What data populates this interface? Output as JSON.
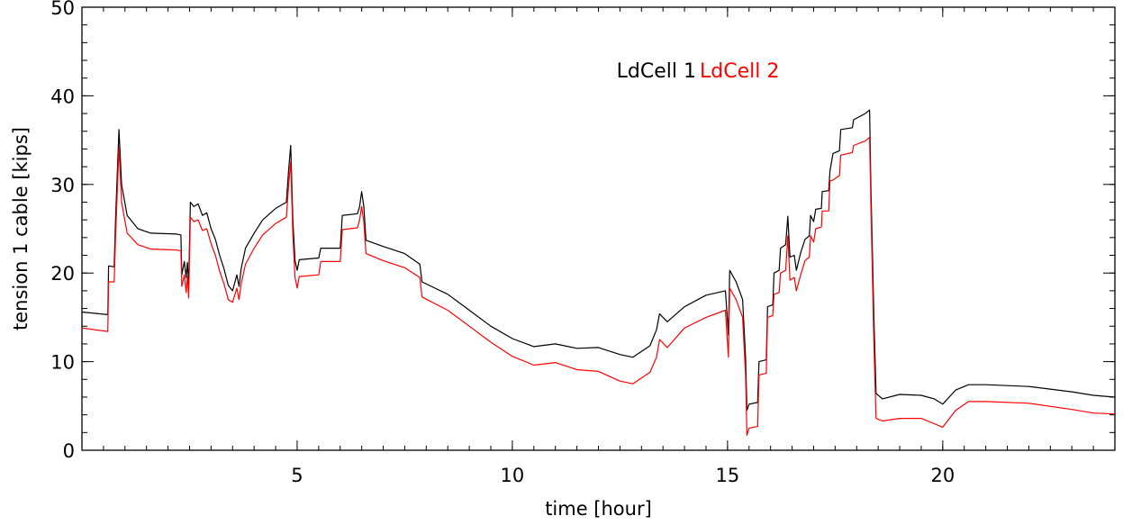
{
  "chart_data": {
    "type": "line",
    "title": "",
    "xlabel": "time [hour]",
    "ylabel": "tension 1 cable [kips]",
    "xlim": [
      0,
      24
    ],
    "ylim": [
      0,
      50
    ],
    "x_ticks": [
      5,
      10,
      15,
      20
    ],
    "y_ticks": [
      0,
      10,
      20,
      30,
      40,
      50
    ],
    "grid": false,
    "legend_position": "top-center",
    "series": [
      {
        "name": "LdCell 1",
        "color": "#000000",
        "points": [
          [
            0.0,
            15.6
          ],
          [
            0.6,
            15.3
          ],
          [
            0.62,
            20.8
          ],
          [
            0.75,
            20.7
          ],
          [
            0.78,
            26
          ],
          [
            0.86,
            36.2
          ],
          [
            0.92,
            30
          ],
          [
            1.05,
            26.5
          ],
          [
            1.3,
            25
          ],
          [
            1.6,
            24.5
          ],
          [
            2.2,
            24.4
          ],
          [
            2.3,
            24.3
          ],
          [
            2.32,
            19.8
          ],
          [
            2.38,
            21.3
          ],
          [
            2.42,
            19.5
          ],
          [
            2.45,
            21.2
          ],
          [
            2.48,
            18.8
          ],
          [
            2.52,
            28.0
          ],
          [
            2.6,
            27.5
          ],
          [
            2.7,
            27.8
          ],
          [
            2.8,
            26.5
          ],
          [
            2.9,
            26.8
          ],
          [
            3.0,
            25
          ],
          [
            3.1,
            23.8
          ],
          [
            3.2,
            22
          ],
          [
            3.3,
            20.5
          ],
          [
            3.4,
            18.6
          ],
          [
            3.5,
            18.0
          ],
          [
            3.6,
            19.8
          ],
          [
            3.65,
            18.5
          ],
          [
            3.7,
            20.5
          ],
          [
            3.8,
            22.8
          ],
          [
            4.0,
            24.5
          ],
          [
            4.2,
            26.0
          ],
          [
            4.5,
            27.3
          ],
          [
            4.75,
            28.0
          ],
          [
            4.8,
            31.5
          ],
          [
            4.85,
            34.4
          ],
          [
            4.9,
            26
          ],
          [
            4.95,
            21.4
          ],
          [
            5.0,
            20.3
          ],
          [
            5.05,
            21.5
          ],
          [
            5.5,
            21.7
          ],
          [
            5.55,
            22.8
          ],
          [
            6.0,
            22.8
          ],
          [
            6.05,
            26.5
          ],
          [
            6.4,
            26.7
          ],
          [
            6.45,
            27.5
          ],
          [
            6.5,
            29.2
          ],
          [
            6.55,
            27.5
          ],
          [
            6.6,
            23.7
          ],
          [
            7.0,
            23.0
          ],
          [
            7.5,
            22.2
          ],
          [
            7.85,
            21.0
          ],
          [
            7.9,
            19.0
          ],
          [
            8.5,
            17.6
          ],
          [
            9.0,
            15.8
          ],
          [
            9.5,
            14.0
          ],
          [
            10.0,
            12.6
          ],
          [
            10.5,
            11.7
          ],
          [
            11.0,
            12.0
          ],
          [
            11.5,
            11.5
          ],
          [
            12.0,
            11.6
          ],
          [
            12.5,
            10.8
          ],
          [
            12.8,
            10.5
          ],
          [
            13.2,
            11.8
          ],
          [
            13.35,
            13.6
          ],
          [
            13.42,
            15.4
          ],
          [
            13.6,
            14.5
          ],
          [
            14.0,
            16.2
          ],
          [
            14.5,
            17.5
          ],
          [
            14.95,
            18.0
          ],
          [
            15.0,
            14.5
          ],
          [
            15.02,
            13.0
          ],
          [
            15.05,
            20.3
          ],
          [
            15.2,
            19.0
          ],
          [
            15.35,
            17.0
          ],
          [
            15.42,
            10.5
          ],
          [
            15.45,
            4.5
          ],
          [
            15.5,
            5.2
          ],
          [
            15.7,
            5.4
          ],
          [
            15.73,
            10.0
          ],
          [
            15.9,
            10.2
          ],
          [
            15.93,
            16.2
          ],
          [
            16.05,
            16.4
          ],
          [
            16.08,
            20.0
          ],
          [
            16.2,
            20.3
          ],
          [
            16.23,
            22.8
          ],
          [
            16.35,
            23.2
          ],
          [
            16.4,
            26.4
          ],
          [
            16.45,
            21.8
          ],
          [
            16.55,
            22.0
          ],
          [
            16.6,
            20.3
          ],
          [
            16.7,
            22.3
          ],
          [
            16.8,
            23.8
          ],
          [
            16.9,
            24.2
          ],
          [
            16.93,
            26.5
          ],
          [
            17.0,
            25.8
          ],
          [
            17.05,
            27.2
          ],
          [
            17.18,
            27.3
          ],
          [
            17.2,
            29.2
          ],
          [
            17.35,
            29.3
          ],
          [
            17.38,
            31.5
          ],
          [
            17.45,
            33.5
          ],
          [
            17.6,
            33.8
          ],
          [
            17.63,
            36.2
          ],
          [
            17.9,
            36.4
          ],
          [
            17.93,
            37.3
          ],
          [
            18.2,
            38.0
          ],
          [
            18.3,
            38.4
          ],
          [
            18.33,
            30
          ],
          [
            18.4,
            15
          ],
          [
            18.45,
            6.4
          ],
          [
            18.6,
            5.8
          ],
          [
            19.0,
            6.3
          ],
          [
            19.5,
            6.2
          ],
          [
            19.8,
            5.8
          ],
          [
            20.0,
            5.2
          ],
          [
            20.3,
            6.8
          ],
          [
            20.6,
            7.4
          ],
          [
            21.0,
            7.4
          ],
          [
            22.0,
            7.2
          ],
          [
            23.0,
            6.6
          ],
          [
            23.5,
            6.2
          ],
          [
            24.0,
            6.0
          ]
        ]
      },
      {
        "name": "LdCell 2",
        "color": "#ff0000",
        "points": [
          [
            0.0,
            13.8
          ],
          [
            0.6,
            13.4
          ],
          [
            0.62,
            19.0
          ],
          [
            0.75,
            19.0
          ],
          [
            0.78,
            24
          ],
          [
            0.86,
            34.2
          ],
          [
            0.92,
            28
          ],
          [
            1.05,
            24.5
          ],
          [
            1.3,
            23.2
          ],
          [
            1.6,
            22.7
          ],
          [
            2.2,
            22.6
          ],
          [
            2.3,
            22.5
          ],
          [
            2.32,
            18.5
          ],
          [
            2.38,
            19.8
          ],
          [
            2.42,
            17.8
          ],
          [
            2.45,
            19.6
          ],
          [
            2.48,
            17.2
          ],
          [
            2.52,
            26.3
          ],
          [
            2.6,
            25.8
          ],
          [
            2.7,
            26.0
          ],
          [
            2.8,
            24.8
          ],
          [
            2.9,
            25.0
          ],
          [
            3.0,
            23.3
          ],
          [
            3.1,
            22.0
          ],
          [
            3.2,
            20.2
          ],
          [
            3.3,
            18.8
          ],
          [
            3.4,
            17.0
          ],
          [
            3.5,
            16.7
          ],
          [
            3.6,
            18.3
          ],
          [
            3.65,
            17.0
          ],
          [
            3.7,
            18.8
          ],
          [
            3.8,
            21.0
          ],
          [
            4.0,
            22.8
          ],
          [
            4.2,
            24.3
          ],
          [
            4.5,
            25.6
          ],
          [
            4.75,
            26.3
          ],
          [
            4.8,
            29.8
          ],
          [
            4.85,
            32.6
          ],
          [
            4.9,
            24.3
          ],
          [
            4.95,
            19.5
          ],
          [
            5.0,
            18.3
          ],
          [
            5.05,
            19.6
          ],
          [
            5.5,
            19.8
          ],
          [
            5.55,
            21.3
          ],
          [
            6.0,
            21.3
          ],
          [
            6.05,
            24.9
          ],
          [
            6.4,
            25.1
          ],
          [
            6.45,
            26.0
          ],
          [
            6.5,
            27.5
          ],
          [
            6.55,
            25.8
          ],
          [
            6.6,
            22.2
          ],
          [
            7.0,
            21.4
          ],
          [
            7.5,
            20.6
          ],
          [
            7.85,
            19.5
          ],
          [
            7.9,
            17.3
          ],
          [
            8.5,
            15.8
          ],
          [
            9.0,
            14.0
          ],
          [
            9.5,
            12.2
          ],
          [
            10.0,
            10.6
          ],
          [
            10.5,
            9.6
          ],
          [
            11.0,
            9.9
          ],
          [
            11.5,
            9.1
          ],
          [
            12.0,
            8.9
          ],
          [
            12.5,
            7.8
          ],
          [
            12.8,
            7.5
          ],
          [
            13.2,
            8.8
          ],
          [
            13.35,
            10.5
          ],
          [
            13.42,
            12.5
          ],
          [
            13.6,
            11.6
          ],
          [
            14.0,
            13.8
          ],
          [
            14.5,
            15.0
          ],
          [
            14.95,
            15.8
          ],
          [
            15.0,
            12.0
          ],
          [
            15.02,
            10.5
          ],
          [
            15.05,
            18.3
          ],
          [
            15.2,
            17.0
          ],
          [
            15.35,
            15.0
          ],
          [
            15.42,
            8.5
          ],
          [
            15.45,
            1.7
          ],
          [
            15.5,
            2.5
          ],
          [
            15.7,
            2.7
          ],
          [
            15.73,
            8.5
          ],
          [
            15.9,
            8.7
          ],
          [
            15.93,
            15.0
          ],
          [
            16.05,
            15.2
          ],
          [
            16.08,
            17.6
          ],
          [
            16.2,
            17.8
          ],
          [
            16.23,
            20.0
          ],
          [
            16.35,
            20.3
          ],
          [
            16.4,
            24.2
          ],
          [
            16.45,
            19.2
          ],
          [
            16.55,
            19.5
          ],
          [
            16.6,
            18.0
          ],
          [
            16.7,
            19.8
          ],
          [
            16.8,
            21.4
          ],
          [
            16.9,
            21.8
          ],
          [
            16.93,
            24.2
          ],
          [
            17.0,
            23.5
          ],
          [
            17.05,
            25.0
          ],
          [
            17.18,
            25.2
          ],
          [
            17.2,
            27.0
          ],
          [
            17.35,
            27.0
          ],
          [
            17.38,
            30.4
          ],
          [
            17.45,
            30.5
          ],
          [
            17.6,
            31.0
          ],
          [
            17.63,
            33.3
          ],
          [
            17.9,
            33.6
          ],
          [
            17.93,
            34.4
          ],
          [
            18.2,
            34.9
          ],
          [
            18.3,
            35.3
          ],
          [
            18.33,
            28
          ],
          [
            18.4,
            12
          ],
          [
            18.45,
            3.6
          ],
          [
            18.6,
            3.3
          ],
          [
            19.0,
            3.6
          ],
          [
            19.5,
            3.6
          ],
          [
            19.8,
            3.0
          ],
          [
            20.0,
            2.6
          ],
          [
            20.3,
            4.5
          ],
          [
            20.6,
            5.5
          ],
          [
            21.0,
            5.5
          ],
          [
            22.0,
            5.3
          ],
          [
            23.0,
            4.6
          ],
          [
            23.5,
            4.2
          ],
          [
            24.0,
            4.1
          ]
        ]
      }
    ]
  }
}
